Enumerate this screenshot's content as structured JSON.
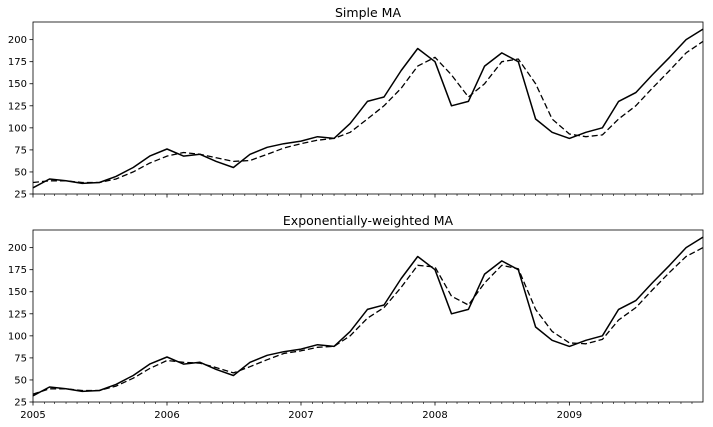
{
  "chart_data": [
    {
      "type": "line",
      "title": "Simple MA",
      "xlabel": "",
      "ylabel": "",
      "xlim": [
        "2005-01-01",
        "2009-12-31"
      ],
      "ylim": [
        25,
        220
      ],
      "yticks": [
        25,
        50,
        75,
        100,
        125,
        150,
        175,
        200
      ],
      "xticks": [],
      "grid": false,
      "x": [
        "2005-01-01",
        "2005-02-15",
        "2005-04-01",
        "2005-05-15",
        "2005-07-01",
        "2005-08-15",
        "2005-10-01",
        "2005-11-15",
        "2006-01-01",
        "2006-02-15",
        "2006-04-01",
        "2006-05-15",
        "2006-07-01",
        "2006-08-15",
        "2006-10-01",
        "2006-11-15",
        "2007-01-01",
        "2007-02-15",
        "2007-04-01",
        "2007-05-15",
        "2007-07-01",
        "2007-08-15",
        "2007-10-01",
        "2007-11-15",
        "2008-01-01",
        "2008-02-15",
        "2008-04-01",
        "2008-05-15",
        "2008-07-01",
        "2008-08-15",
        "2008-10-01",
        "2008-11-15",
        "2009-01-01",
        "2009-02-15",
        "2009-04-01",
        "2009-05-15",
        "2009-07-01",
        "2009-08-15",
        "2009-10-01",
        "2009-11-15",
        "2009-12-31"
      ],
      "series": [
        {
          "style": "solid",
          "values": [
            32,
            42,
            40,
            37,
            38,
            45,
            55,
            68,
            76,
            68,
            70,
            62,
            55,
            70,
            78,
            82,
            85,
            90,
            88,
            105,
            130,
            135,
            165,
            190,
            175,
            125,
            130,
            170,
            185,
            175,
            110,
            95,
            88,
            95,
            100,
            130,
            140,
            160,
            180,
            200,
            212
          ]
        },
        {
          "style": "dashed",
          "values": [
            38,
            40,
            40,
            38,
            38,
            42,
            50,
            60,
            68,
            72,
            70,
            66,
            62,
            63,
            70,
            77,
            82,
            86,
            88,
            95,
            110,
            125,
            145,
            170,
            180,
            160,
            135,
            150,
            175,
            178,
            150,
            110,
            93,
            90,
            92,
            110,
            125,
            145,
            165,
            185,
            198
          ]
        }
      ]
    },
    {
      "type": "line",
      "title": "Exponentially-weighted MA",
      "xlabel": "",
      "ylabel": "",
      "xlim": [
        "2005-01-01",
        "2009-12-31"
      ],
      "ylim": [
        25,
        220
      ],
      "yticks": [
        25,
        50,
        75,
        100,
        125,
        150,
        175,
        200
      ],
      "xticks": [
        "2005",
        "2006",
        "2007",
        "2008",
        "2009"
      ],
      "grid": false,
      "x": [
        "2005-01-01",
        "2005-02-15",
        "2005-04-01",
        "2005-05-15",
        "2005-07-01",
        "2005-08-15",
        "2005-10-01",
        "2005-11-15",
        "2006-01-01",
        "2006-02-15",
        "2006-04-01",
        "2006-05-15",
        "2006-07-01",
        "2006-08-15",
        "2006-10-01",
        "2006-11-15",
        "2007-01-01",
        "2007-02-15",
        "2007-04-01",
        "2007-05-15",
        "2007-07-01",
        "2007-08-15",
        "2007-10-01",
        "2007-11-15",
        "2008-01-01",
        "2008-02-15",
        "2008-04-01",
        "2008-05-15",
        "2008-07-01",
        "2008-08-15",
        "2008-10-01",
        "2008-11-15",
        "2009-01-01",
        "2009-02-15",
        "2009-04-01",
        "2009-05-15",
        "2009-07-01",
        "2009-08-15",
        "2009-10-01",
        "2009-11-15",
        "2009-12-31"
      ],
      "series": [
        {
          "style": "solid",
          "values": [
            32,
            42,
            40,
            37,
            38,
            45,
            55,
            68,
            76,
            68,
            70,
            62,
            55,
            70,
            78,
            82,
            85,
            90,
            88,
            105,
            130,
            135,
            165,
            190,
            175,
            125,
            130,
            170,
            185,
            175,
            110,
            95,
            88,
            95,
            100,
            130,
            140,
            160,
            180,
            200,
            212
          ]
        },
        {
          "style": "dashed",
          "values": [
            34,
            40,
            40,
            38,
            38,
            43,
            52,
            63,
            72,
            70,
            69,
            64,
            58,
            65,
            73,
            80,
            83,
            87,
            88,
            100,
            120,
            132,
            155,
            180,
            178,
            145,
            135,
            160,
            180,
            176,
            130,
            105,
            92,
            91,
            96,
            118,
            132,
            152,
            172,
            190,
            200
          ]
        }
      ]
    }
  ]
}
